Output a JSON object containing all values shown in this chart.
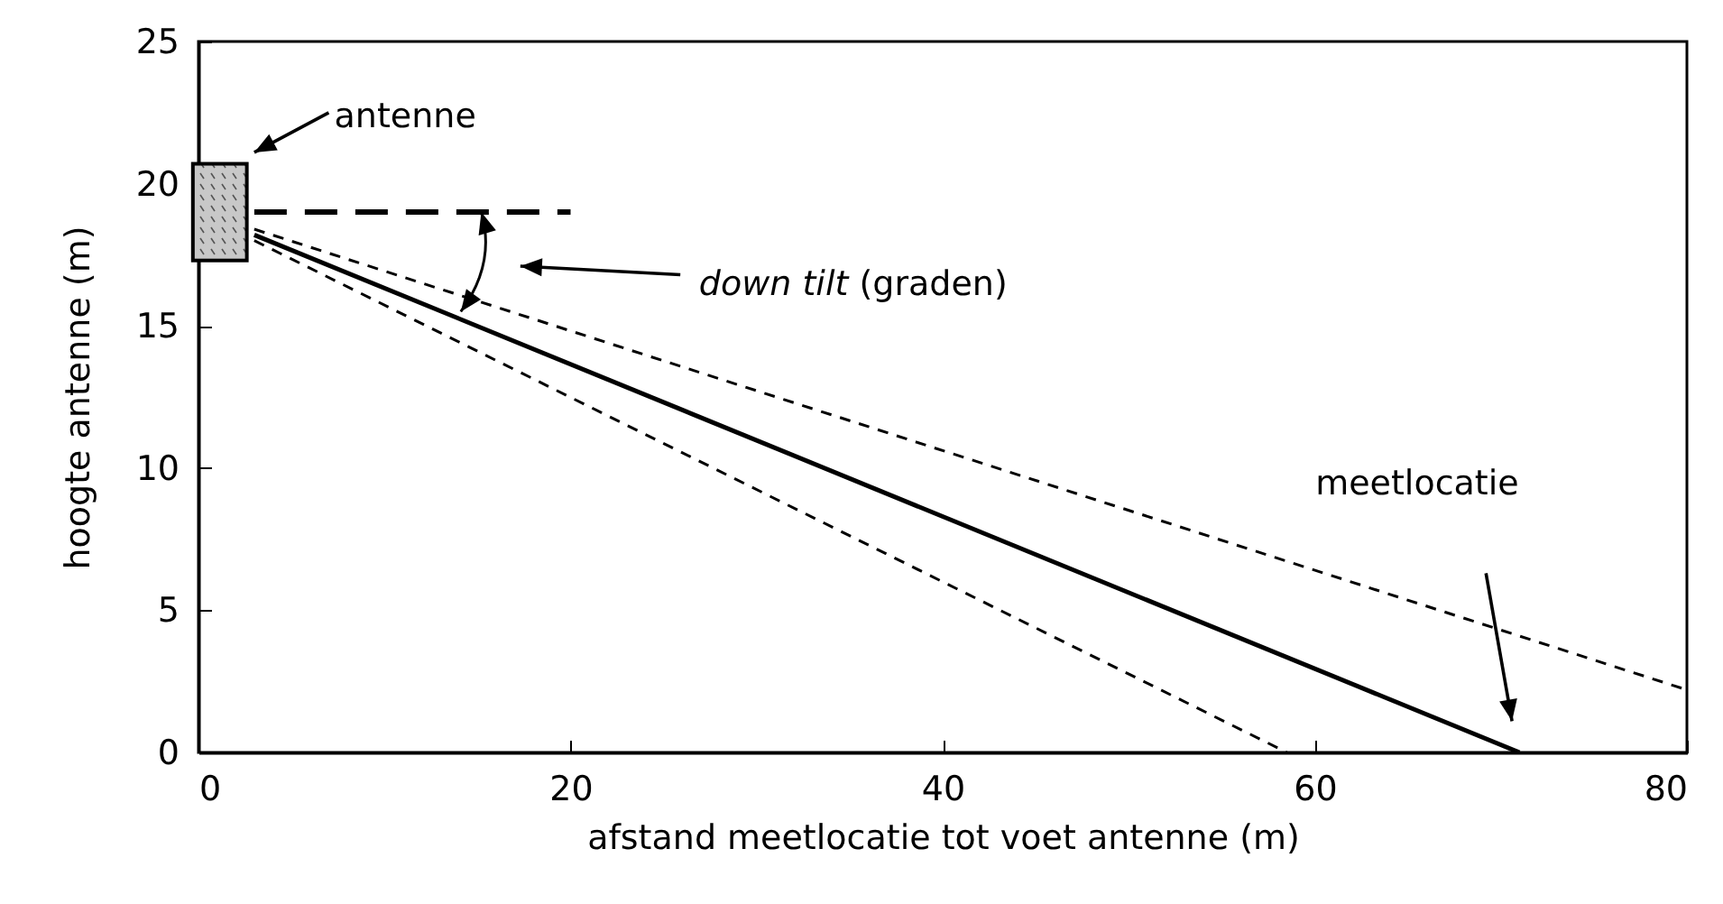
{
  "chart_data": {
    "type": "line",
    "xlabel": "afstand meetlocatie tot voet antenne (m)",
    "ylabel": "hoogte antenne (m)",
    "xlim": [
      0,
      80
    ],
    "xticks": [
      0,
      20,
      40,
      60,
      80
    ],
    "ylim": [
      0,
      25
    ],
    "yticks": [
      0,
      5,
      10,
      15,
      20,
      25
    ],
    "grid": false,
    "legend": false,
    "marker": "none",
    "series": [
      {
        "color": "#000000",
        "line_style": "solid",
        "x": [
          3,
          71
        ],
        "values": [
          18.2,
          0
        ]
      },
      {
        "color": "#000000",
        "line_style": "dashed",
        "x": [
          3,
          80
        ],
        "values": [
          18.4,
          2.2
        ]
      },
      {
        "color": "#000000",
        "line_style": "dashed",
        "x": [
          3,
          58.5
        ],
        "values": [
          18,
          0
        ]
      },
      {
        "color": "#000000",
        "line_style": "dashed",
        "x": [
          3,
          20
        ],
        "values": [
          19,
          19
        ]
      }
    ],
    "annotations": [
      "antenne",
      "down tilt (graden)",
      "meetlocatie"
    ]
  }
}
